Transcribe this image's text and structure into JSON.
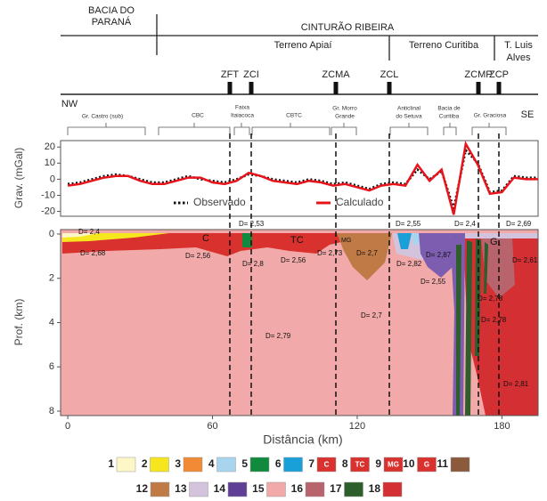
{
  "header": {
    "basin": [
      "BACIA DO",
      "PARANÁ"
    ],
    "belt": "CINTURÃO RIBEIRA",
    "terranes": [
      [
        "Terreno Apiaí"
      ],
      [
        "Terreno Curitiba"
      ],
      [
        "T. Luis",
        "Alves"
      ]
    ],
    "faults": [
      "ZFT",
      "ZCI",
      "ZCMA",
      "ZCL",
      "ZCMP",
      "ZCP"
    ],
    "directions": [
      "NW",
      "SE"
    ],
    "units": [
      [
        "Gr. Castro (sub)"
      ],
      [
        "CBC"
      ],
      [
        "Faixa",
        "Itaiacoca"
      ],
      [
        "CBTC"
      ],
      [
        "Gr. Morro",
        "Grande"
      ],
      [
        "Anticlinal",
        "do Setuva"
      ],
      [
        "Bacia de",
        "Curitiba"
      ],
      [
        "Gr. Graciosa"
      ]
    ]
  },
  "chart_data": [
    {
      "type": "line",
      "ylabel": "Grav. (mGal)",
      "x": [
        0,
        5,
        10,
        15,
        20,
        25,
        30,
        35,
        40,
        45,
        50,
        55,
        60,
        65,
        70,
        75,
        80,
        85,
        90,
        95,
        100,
        105,
        110,
        115,
        120,
        125,
        130,
        135,
        140,
        145,
        150,
        155,
        160,
        165,
        170,
        175,
        180,
        185,
        190,
        195
      ],
      "series": [
        {
          "name": "Observado",
          "color": "#111111",
          "values": [
            -3,
            -2,
            0,
            2,
            3,
            2,
            0,
            -2,
            -2,
            0,
            2,
            0,
            -1,
            -2,
            0,
            3,
            2,
            0,
            -1,
            -2,
            0,
            -1,
            -3,
            -2,
            -4,
            -6,
            -3,
            -2,
            -3,
            6,
            0,
            5,
            -18,
            18,
            10,
            -8,
            -7,
            2,
            1,
            1
          ]
        },
        {
          "name": "Calculado",
          "color": "#e8141b",
          "values": [
            -4,
            -3,
            -1,
            1,
            2,
            2,
            -1,
            -3,
            -3,
            -1,
            1,
            1,
            -2,
            -3,
            -1,
            4,
            2,
            -1,
            -2,
            -3,
            -1,
            -2,
            -4,
            -3,
            -5,
            -7,
            -4,
            -3,
            -4,
            9,
            -1,
            6,
            -22,
            22,
            9,
            -9,
            -8,
            1,
            0,
            0
          ]
        }
      ],
      "xlim": [
        -3,
        195
      ],
      "ylim": [
        -23,
        24
      ],
      "yticks": [
        -20,
        -10,
        0,
        10,
        20
      ]
    },
    {
      "type": "section",
      "xlabel": "Distância (km)",
      "ylabel": "Prof. (km)",
      "xlim": [
        -3,
        195
      ],
      "ylim": [
        -0.2,
        8.2
      ],
      "y_inverted": true,
      "xticks": [
        0,
        60,
        120,
        180
      ],
      "yticks": [
        0,
        2,
        4,
        6,
        8
      ],
      "annotations": [
        "D= 2,4",
        "D= 2,68",
        "C",
        "D= 2,56",
        "D= 2,53",
        "D= 2,8",
        "TC",
        "D= 2,56",
        "D= 2,73",
        "MG",
        "D= 2,7",
        "D= 2,7",
        "D= 2,82",
        "D= 2,55",
        "D= 2,87",
        "D= 2,55",
        "D= 2,4",
        "G₁",
        "D= 2,69",
        "D= 2,61",
        "D= 2,78",
        "D= 2,78",
        "D= 2,79",
        "D= 2,81"
      ]
    }
  ],
  "legend": {
    "items": [
      {
        "label": "1",
        "color": "#fdf7c8"
      },
      {
        "label": "2",
        "color": "#f6e61e"
      },
      {
        "label": "3",
        "color": "#f08a35"
      },
      {
        "label": "4",
        "color": "#a9d4ee"
      },
      {
        "label": "5",
        "color": "#128a3e"
      },
      {
        "label": "6",
        "color": "#1aa0d8"
      },
      {
        "label": "7",
        "color": "#d9312d",
        "text": "C"
      },
      {
        "label": "8",
        "color": "#d9312d",
        "text": "TC"
      },
      {
        "label": "9",
        "color": "#d9312d",
        "text": "MG"
      },
      {
        "label": "10",
        "color": "#d9312d",
        "text": "G"
      },
      {
        "label": "11",
        "color": "#8b5a3c"
      },
      {
        "label": "12",
        "color": "#c07a45"
      },
      {
        "label": "13",
        "color": "#d3c3dc"
      },
      {
        "label": "14",
        "color": "#5f3f96"
      },
      {
        "label": "15",
        "color": "#f2a9a9"
      },
      {
        "label": "16",
        "color": "#b9636c"
      },
      {
        "label": "17",
        "color": "#2d5e2b"
      },
      {
        "label": "18",
        "color": "#d42f33"
      }
    ]
  }
}
